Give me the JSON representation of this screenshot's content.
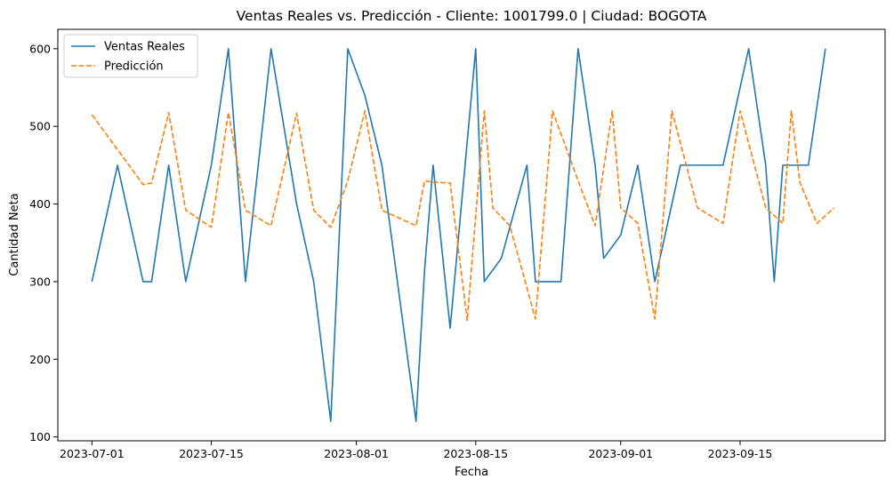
{
  "chart_data": {
    "type": "line",
    "title": "Ventas Reales vs. Predicción - Cliente: 1001799.0 | Ciudad: BOGOTA",
    "xlabel": "Fecha",
    "ylabel": "Cantidad Neta",
    "xlim": [
      "2023-06-27",
      "2023-10-02"
    ],
    "ylim": [
      95,
      625
    ],
    "x_ticks": [
      "2023-07-01",
      "2023-07-15",
      "2023-08-01",
      "2023-08-15",
      "2023-09-01",
      "2023-09-15"
    ],
    "y_ticks": [
      100,
      200,
      300,
      400,
      500,
      600
    ],
    "grid": false,
    "legend": "upper-left",
    "series": [
      {
        "name": "Ventas Reales",
        "color": "#1f77b4",
        "style": "solid",
        "x": [
          "2023-07-01",
          "2023-07-04",
          "2023-07-07",
          "2023-07-08",
          "2023-07-10",
          "2023-07-12",
          "2023-07-15",
          "2023-07-17",
          "2023-07-19",
          "2023-07-22",
          "2023-07-25",
          "2023-07-27",
          "2023-07-28",
          "2023-07-29",
          "2023-07-31",
          "2023-08-02",
          "2023-08-04",
          "2023-08-08",
          "2023-08-09",
          "2023-08-10",
          "2023-08-12",
          "2023-08-15",
          "2023-08-16",
          "2023-08-18",
          "2023-08-21",
          "2023-08-22",
          "2023-08-25",
          "2023-08-27",
          "2023-08-29",
          "2023-08-30",
          "2023-09-01",
          "2023-09-03",
          "2023-09-05",
          "2023-09-08",
          "2023-09-11",
          "2023-09-13",
          "2023-09-16",
          "2023-09-18",
          "2023-09-19",
          "2023-09-20",
          "2023-09-23",
          "2023-09-25"
        ],
        "y": [
          300,
          450,
          300,
          300,
          450,
          300,
          450,
          600,
          300,
          600,
          400,
          300,
          210,
          120,
          600,
          540,
          450,
          120,
          315,
          450,
          240,
          600,
          300,
          330,
          450,
          300,
          300,
          600,
          450,
          330,
          360,
          450,
          300,
          450,
          450,
          450,
          600,
          450,
          300,
          450,
          450,
          600
        ]
      },
      {
        "name": "Predicción",
        "color": "#ff7f0e",
        "style": "dashed",
        "x": [
          "2023-07-01",
          "2023-07-04",
          "2023-07-07",
          "2023-07-08",
          "2023-07-10",
          "2023-07-12",
          "2023-07-15",
          "2023-07-17",
          "2023-07-19",
          "2023-07-22",
          "2023-07-25",
          "2023-07-27",
          "2023-07-29",
          "2023-07-31",
          "2023-08-02",
          "2023-08-04",
          "2023-08-08",
          "2023-08-09",
          "2023-08-10",
          "2023-08-12",
          "2023-08-14",
          "2023-08-16",
          "2023-08-17",
          "2023-08-19",
          "2023-08-22",
          "2023-08-24",
          "2023-08-27",
          "2023-08-29",
          "2023-08-31",
          "2023-09-01",
          "2023-09-03",
          "2023-09-05",
          "2023-09-07",
          "2023-09-10",
          "2023-09-13",
          "2023-09-15",
          "2023-09-18",
          "2023-09-20",
          "2023-09-21",
          "2023-09-22",
          "2023-09-24",
          "2023-09-26"
        ],
        "y": [
          515,
          470,
          425,
          427,
          518,
          392,
          370,
          518,
          392,
          372,
          517,
          392,
          370,
          430,
          520,
          392,
          372,
          430,
          428,
          427,
          250,
          520,
          395,
          372,
          252,
          520,
          430,
          372,
          520,
          395,
          375,
          252,
          520,
          395,
          375,
          520,
          395,
          375,
          520,
          428,
          375,
          395
        ]
      }
    ]
  }
}
